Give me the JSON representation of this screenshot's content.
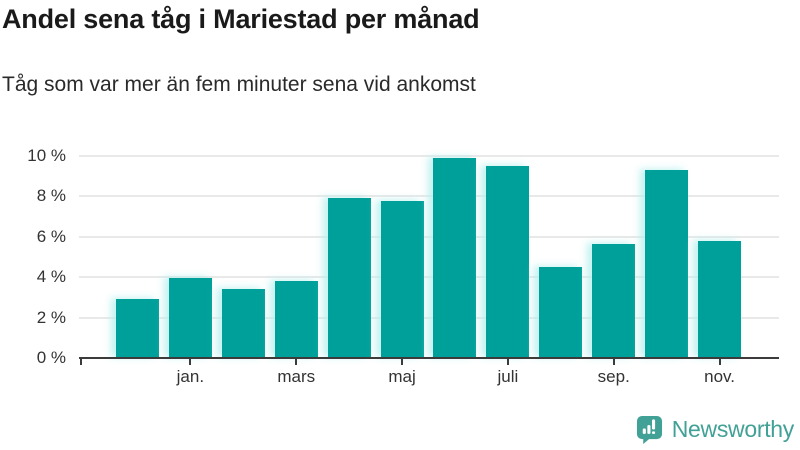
{
  "header": {
    "title": "Andel sena tåg i Mariestad per månad",
    "subtitle": "Tåg som var mer än fem minuter sena vid ankomst"
  },
  "chart_data": {
    "type": "bar",
    "title": "Andel sena tåg i Mariestad per månad",
    "subtitle": "Tåg som var mer än fem minuter sena vid ankomst",
    "unit": "%",
    "ylim": [
      0,
      10
    ],
    "grid": true,
    "bar_count": 12,
    "values": [
      2.9,
      3.95,
      3.4,
      3.8,
      7.9,
      7.75,
      9.9,
      9.5,
      4.5,
      5.65,
      9.3,
      5.8
    ],
    "y_ticks": [
      {
        "value": 0,
        "label": "0 %"
      },
      {
        "value": 2,
        "label": "2 %"
      },
      {
        "value": 4,
        "label": "4 %"
      },
      {
        "value": 6,
        "label": "6 %"
      },
      {
        "value": 8,
        "label": "8 %"
      },
      {
        "value": 10,
        "label": "10 %"
      }
    ],
    "x_ticks": [
      {
        "bar": 2,
        "label": "jan."
      },
      {
        "bar": 4,
        "label": "mars"
      },
      {
        "bar": 6,
        "label": "maj"
      },
      {
        "bar": 8,
        "label": "juli"
      },
      {
        "bar": 10,
        "label": "sep."
      },
      {
        "bar": 12,
        "label": "nov."
      }
    ],
    "colors": {
      "bar": "#00a09a",
      "grid": "#e9e9e9",
      "axis": "#3b3b3b",
      "tick_text": "#333333"
    }
  },
  "branding": {
    "wordmark": "Newsworthy",
    "color": "#41a196",
    "icon": "newsworthy-speech-bubble-bar-chart-icon"
  }
}
